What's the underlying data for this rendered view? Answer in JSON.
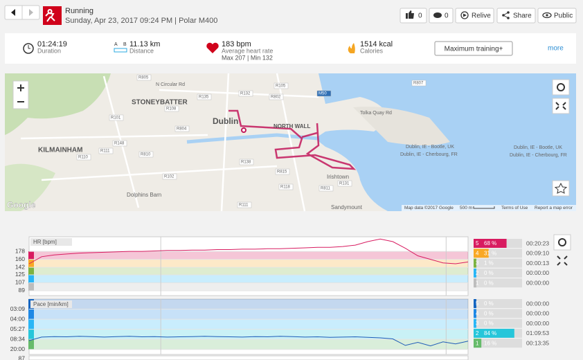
{
  "header": {
    "sport": "Running",
    "subtitle": "Sunday, Apr 23, 2017 09:24 PM | Polar M400",
    "likes": "0",
    "comments": "0",
    "relive": "Relive",
    "share": "Share",
    "privacy": "Public"
  },
  "summary": {
    "items": [
      {
        "value": "01:24:19",
        "label": "Duration"
      },
      {
        "value": "11.13 km",
        "label": "Distance"
      },
      {
        "value": "183 bpm",
        "label": "Average heart rate",
        "extra": "Max 207 | Min 132"
      },
      {
        "value": "1514 kcal",
        "label": "Calories"
      }
    ],
    "button": "Maximum training+",
    "more": "more"
  },
  "map": {
    "labels": [
      "STONEYBATTER",
      "Dublin",
      "NORTH WALL",
      "KILMAINHAM",
      "Dolphins Barn",
      "Irishtown",
      "Sandymount",
      "Tolka Quay Rd",
      "N Circular Rd",
      "Dublin, IE - Bootle, UK",
      "Dublin, IE - Cherbourg, FR",
      "Dublin, IE - Bootle, UK",
      "Dublin, IE - Cherbourg, FR",
      "R805",
      "R135",
      "R108",
      "R101",
      "R804",
      "R148",
      "R111",
      "R810",
      "R110",
      "R102",
      "R138",
      "R105",
      "R132",
      "R802",
      "M50",
      "R807",
      "R131",
      "R815",
      "R118",
      "R811",
      "R111"
    ],
    "attribution": "Map data ©2017 Google",
    "scale": "500 m",
    "terms": "Terms of Use",
    "report": "Report a map error",
    "logo": "Google"
  },
  "hr_chart": {
    "title": "HR [bpm]",
    "ylim": [
      78,
      211
    ],
    "yticks": [
      178,
      160,
      142,
      125,
      107,
      89
    ],
    "values": [
      150,
      166,
      170,
      172,
      174,
      175,
      176,
      177,
      178,
      178,
      179,
      180,
      180,
      181,
      181,
      182,
      182,
      183,
      183,
      184,
      184,
      185,
      186,
      187,
      187,
      189,
      192,
      200,
      206,
      200,
      185,
      168,
      160,
      152,
      150,
      154
    ],
    "color": "#d81b60",
    "zones": [
      {
        "zone": "5",
        "percent": 68,
        "percent_label": "68 %",
        "time": "00:20:23",
        "color": "#d81b60"
      },
      {
        "zone": "4",
        "percent": 31,
        "percent_label": "31 %",
        "time": "00:09:10",
        "color": "#f9a825"
      },
      {
        "zone": "3",
        "percent": 1,
        "percent_label": "1 %",
        "time": "00:00:13",
        "color": "#7cb342"
      },
      {
        "zone": "2",
        "percent": 0,
        "percent_label": "0 %",
        "time": "00:00:00",
        "color": "#29b6f6"
      },
      {
        "zone": "1",
        "percent": 0,
        "percent_label": "0 %",
        "time": "00:00:00",
        "color": "#bdbdbd"
      }
    ]
  },
  "pace_chart": {
    "title": "Pace [min/km]",
    "ylim": [
      1,
      23
    ],
    "yticks": [
      {
        "value": 19,
        "label": "03:09"
      },
      {
        "value": 15,
        "label": "04:00"
      },
      {
        "value": 11,
        "label": "05:27"
      },
      {
        "value": 7,
        "label": "08:34"
      },
      {
        "value": 3,
        "label": "20:00"
      }
    ],
    "values": [
      6.5,
      7.9,
      8.1,
      8.0,
      8.2,
      8.1,
      7.9,
      8.1,
      8.2,
      8.0,
      8.1,
      7.9,
      8.0,
      8.1,
      8.2,
      8.1,
      8.0,
      7.9,
      8.1,
      8.0,
      8.2,
      8.1,
      7.9,
      8.0,
      7.8,
      7.9,
      8.0,
      7.8,
      7.6,
      7.2,
      4.6,
      5.8,
      4.4,
      6.0,
      5.2,
      6.3
    ],
    "color": "#1e5bb8",
    "zones": [
      {
        "zone": "5",
        "percent": 0,
        "percent_label": "0 %",
        "time": "00:00:00",
        "color": "#1565c0"
      },
      {
        "zone": "4",
        "percent": 0,
        "percent_label": "0 %",
        "time": "00:00:00",
        "color": "#1e88e5"
      },
      {
        "zone": "3",
        "percent": 0,
        "percent_label": "0 %",
        "time": "00:00:00",
        "color": "#29b6f6"
      },
      {
        "zone": "2",
        "percent": 84,
        "percent_label": "84 %",
        "time": "01:09:53",
        "color": "#26c6da"
      },
      {
        "zone": "1",
        "percent": 16,
        "percent_label": "16 %",
        "time": "00:13:35",
        "color": "#66bb6a"
      }
    ]
  },
  "cadence_chart": {
    "yticks": [
      87
    ]
  }
}
